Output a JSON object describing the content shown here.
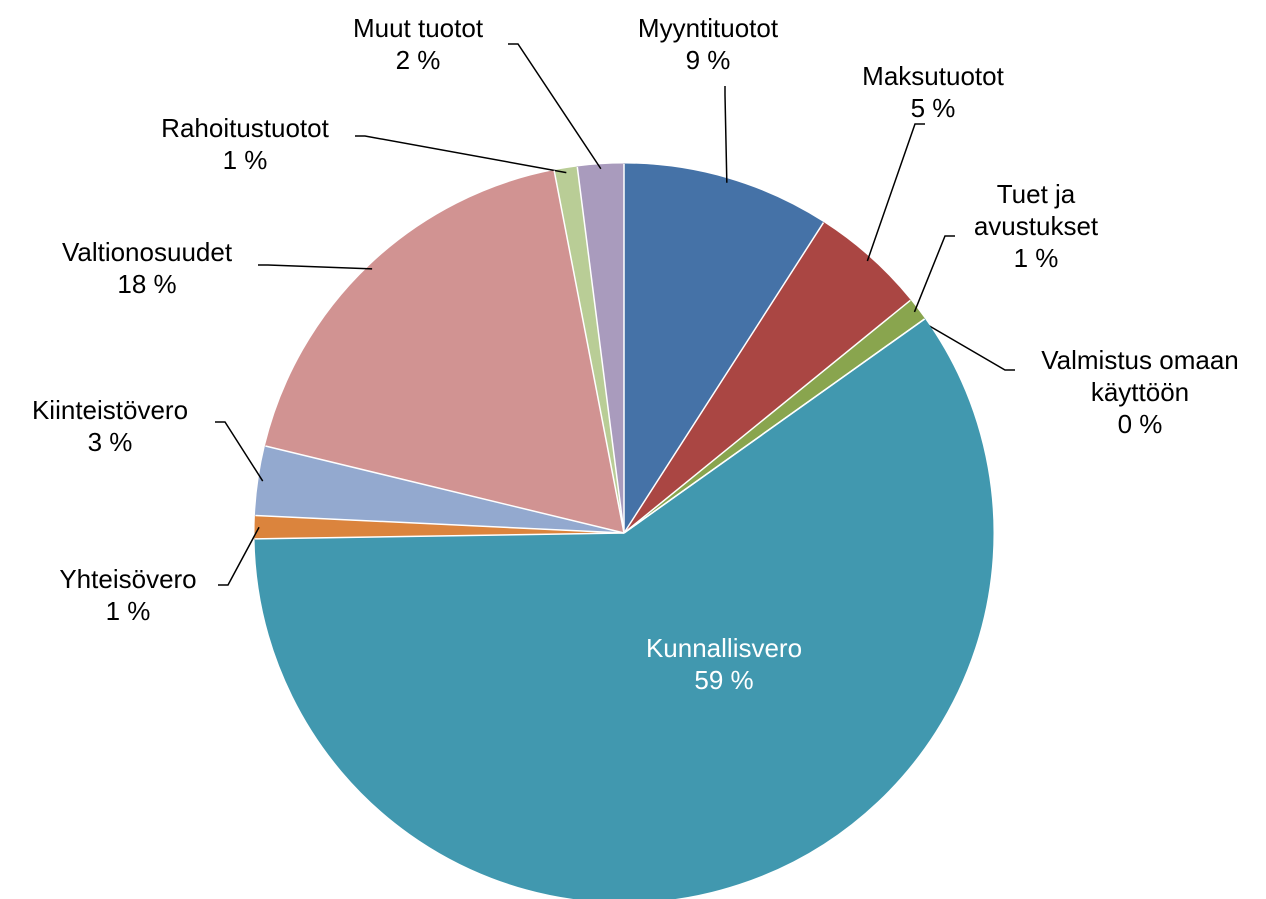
{
  "chart_data": {
    "type": "pie",
    "categories": [
      "Myyntituotot",
      "Maksutuotot",
      "Tuet ja avustukset",
      "Valmistus omaan käyttöön",
      "Kunnallisvero",
      "Yhteisövero",
      "Kiinteistövero",
      "Valtionosuudet",
      "Rahoitustuotot",
      "Muut tuotot"
    ],
    "values": [
      9,
      5,
      1,
      0,
      59,
      1,
      3,
      18,
      1,
      2
    ],
    "value_labels": [
      "9 %",
      "5 %",
      "1 %",
      "0 %",
      "59 %",
      "1 %",
      "3 %",
      "18 %",
      "1 %",
      "2 %"
    ],
    "colors": [
      "#4572a7",
      "#aa4643",
      "#89a54e",
      "#71588f",
      "#4198af",
      "#db843d",
      "#93a9cf",
      "#d19392",
      "#b9cd96",
      "#a99bbd"
    ]
  }
}
